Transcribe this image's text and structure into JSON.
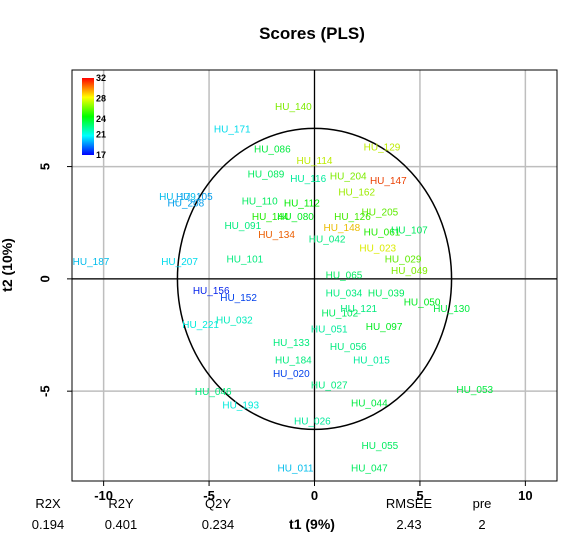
{
  "chart_data": {
    "type": "scatter",
    "title": "Scores (PLS)",
    "xlabel": "t1 (9%)",
    "ylabel": "t2 (10%)",
    "xlim": [
      -11.5,
      11.5
    ],
    "ylim": [
      -9,
      9.3
    ],
    "x_ticks": [
      -10,
      -5,
      0,
      5,
      10
    ],
    "y_ticks": [
      -5,
      0,
      5
    ],
    "grid": true,
    "ellipse": {
      "cx": 0,
      "cy": 0,
      "rx": 6.5,
      "ry": 6.7
    },
    "colorbar": {
      "ticks": [
        17,
        21,
        24,
        28,
        32
      ],
      "min": 17,
      "max": 32,
      "placement": "top-left"
    },
    "points": [
      {
        "label": "HU_140",
        "x": -1.0,
        "y": 7.7,
        "value": 26.5
      },
      {
        "label": "HU_171",
        "x": -3.9,
        "y": 6.7,
        "value": 20.5
      },
      {
        "label": "HU_086",
        "x": -2.0,
        "y": 5.8,
        "value": 23.5
      },
      {
        "label": "HU_129",
        "x": 3.2,
        "y": 5.9,
        "value": 27.5
      },
      {
        "label": "HU_114",
        "x": 0.0,
        "y": 5.3,
        "value": 27.5
      },
      {
        "label": "HU_089",
        "x": -2.3,
        "y": 4.7,
        "value": 23.0
      },
      {
        "label": "HU_116",
        "x": -0.3,
        "y": 4.5,
        "value": 22.0
      },
      {
        "label": "HU_204",
        "x": 1.6,
        "y": 4.6,
        "value": 26.5
      },
      {
        "label": "HU_147",
        "x": 3.5,
        "y": 4.4,
        "value": 31.0
      },
      {
        "label": "HU_162",
        "x": 2.0,
        "y": 3.9,
        "value": 27.0
      },
      {
        "label": "HU_179",
        "x": -6.5,
        "y": 3.7,
        "value": 20.0
      },
      {
        "label": "HU_105",
        "x": -5.7,
        "y": 3.7,
        "value": 19.5
      },
      {
        "label": "HU_208",
        "x": -6.1,
        "y": 3.4,
        "value": 19.5
      },
      {
        "label": "HU_110",
        "x": -2.6,
        "y": 3.5,
        "value": 23.0
      },
      {
        "label": "HU_112",
        "x": -0.6,
        "y": 3.4,
        "value": 24.5
      },
      {
        "label": "HU_205",
        "x": 3.1,
        "y": 3.0,
        "value": 26.0
      },
      {
        "label": "HU_144",
        "x": -2.1,
        "y": 2.8,
        "value": 25.0
      },
      {
        "label": "HU_126",
        "x": 1.8,
        "y": 2.8,
        "value": 25.5
      },
      {
        "label": "HU_148",
        "x": 1.3,
        "y": 2.3,
        "value": 29.0
      },
      {
        "label": "HU_080",
        "x": -0.9,
        "y": 2.8,
        "value": 24.0
      },
      {
        "label": "HU_061",
        "x": 3.2,
        "y": 2.1,
        "value": 25.0
      },
      {
        "label": "HU_107",
        "x": 4.5,
        "y": 2.2,
        "value": 23.0
      },
      {
        "label": "HU_091",
        "x": -3.4,
        "y": 2.4,
        "value": 22.5
      },
      {
        "label": "HU_134",
        "x": -1.8,
        "y": 2.0,
        "value": 30.5
      },
      {
        "label": "HU_042",
        "x": 0.6,
        "y": 1.8,
        "value": 22.5
      },
      {
        "label": "HU_023",
        "x": 3.0,
        "y": 1.4,
        "value": 28.0
      },
      {
        "label": "HU_187",
        "x": -10.6,
        "y": 0.8,
        "value": 20.0
      },
      {
        "label": "HU_207",
        "x": -6.4,
        "y": 0.8,
        "value": 20.5
      },
      {
        "label": "HU_101",
        "x": -3.3,
        "y": 0.9,
        "value": 22.5
      },
      {
        "label": "HU_029",
        "x": 4.2,
        "y": 0.9,
        "value": 26.0
      },
      {
        "label": "HU_049",
        "x": 4.5,
        "y": 0.4,
        "value": 26.5
      },
      {
        "label": "HU_065",
        "x": 1.4,
        "y": 0.2,
        "value": 23.0
      },
      {
        "label": "HU_156",
        "x": -4.9,
        "y": -0.5,
        "value": 17.5
      },
      {
        "label": "HU_152",
        "x": -3.6,
        "y": -0.8,
        "value": 18.0
      },
      {
        "label": "HU_034",
        "x": 1.4,
        "y": -0.6,
        "value": 22.5
      },
      {
        "label": "HU_039",
        "x": 3.4,
        "y": -0.6,
        "value": 23.0
      },
      {
        "label": "HU_050",
        "x": 5.1,
        "y": -1.0,
        "value": 24.0
      },
      {
        "label": "HU_130",
        "x": 6.5,
        "y": -1.3,
        "value": 23.5
      },
      {
        "label": "HU_121",
        "x": 2.1,
        "y": -1.3,
        "value": 22.5
      },
      {
        "label": "HU_102",
        "x": 1.2,
        "y": -1.5,
        "value": 23.0
      },
      {
        "label": "HU_221",
        "x": -5.4,
        "y": -2.0,
        "value": 21.0
      },
      {
        "label": "HU_032",
        "x": -3.8,
        "y": -1.8,
        "value": 21.5
      },
      {
        "label": "HU_097",
        "x": 3.3,
        "y": -2.1,
        "value": 24.0
      },
      {
        "label": "HU_051",
        "x": 0.7,
        "y": -2.2,
        "value": 22.0
      },
      {
        "label": "HU_133",
        "x": -1.1,
        "y": -2.8,
        "value": 22.5
      },
      {
        "label": "HU_056",
        "x": 1.6,
        "y": -3.0,
        "value": 22.5
      },
      {
        "label": "HU_184",
        "x": -1.0,
        "y": -3.6,
        "value": 22.5
      },
      {
        "label": "HU_015",
        "x": 2.7,
        "y": -3.6,
        "value": 22.0
      },
      {
        "label": "HU_020",
        "x": -1.1,
        "y": -4.2,
        "value": 18.0
      },
      {
        "label": "HU_027",
        "x": 0.7,
        "y": -4.7,
        "value": 22.5
      },
      {
        "label": "HU_053",
        "x": 7.6,
        "y": -4.9,
        "value": 23.5
      },
      {
        "label": "HU_046",
        "x": -4.8,
        "y": -5.0,
        "value": 22.5
      },
      {
        "label": "HU_044",
        "x": 2.6,
        "y": -5.5,
        "value": 23.5
      },
      {
        "label": "HU_193",
        "x": -3.5,
        "y": -5.6,
        "value": 21.0
      },
      {
        "label": "HU_026",
        "x": -0.1,
        "y": -6.3,
        "value": 22.0
      },
      {
        "label": "HU_055",
        "x": 3.1,
        "y": -7.4,
        "value": 23.0
      },
      {
        "label": "HU_011",
        "x": -0.9,
        "y": -8.4,
        "value": 20.0
      },
      {
        "label": "HU_047",
        "x": 2.6,
        "y": -8.4,
        "value": 23.0
      }
    ],
    "stats": {
      "headers": [
        "R2X",
        "R2Y",
        "Q2Y",
        "RMSEE",
        "pre"
      ],
      "values": [
        "0.194",
        "0.401",
        "0.234",
        "2.43",
        "2"
      ]
    }
  }
}
